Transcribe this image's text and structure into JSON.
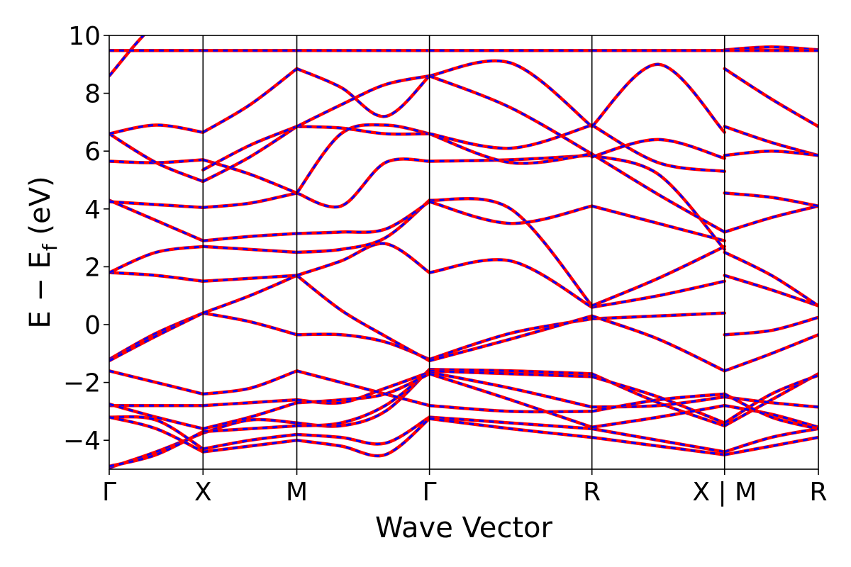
{
  "chart_data": {
    "type": "line",
    "title": "",
    "xlabel": "Wave Vector",
    "ylabel_main": "E − E",
    "ylabel_sub": "f",
    "ylabel_unit": " (eV)",
    "ylim": [
      -5,
      10
    ],
    "yticks": [
      {
        "v": -4,
        "label": "−4"
      },
      {
        "v": -2,
        "label": "−2"
      },
      {
        "v": 0,
        "label": "0"
      },
      {
        "v": 2,
        "label": "2"
      },
      {
        "v": 4,
        "label": "4"
      },
      {
        "v": 6,
        "label": "6"
      },
      {
        "v": 8,
        "label": "8"
      },
      {
        "v": 10,
        "label": "10"
      }
    ],
    "kpath_segments": [
      {
        "from": "Γ",
        "to": "X",
        "length": 0.5
      },
      {
        "from": "X",
        "to": "M",
        "length": 0.5
      },
      {
        "from": "M",
        "to": "Γ",
        "length": 0.707
      },
      {
        "from": "Γ",
        "to": "R",
        "length": 0.866
      },
      {
        "from": "R",
        "to": "X",
        "length": 0.707
      },
      {
        "from": "M",
        "to": "R",
        "length": 0.5
      }
    ],
    "kticks": [
      {
        "x": 0.0,
        "label": "Γ"
      },
      {
        "x": 0.5,
        "label": "X"
      },
      {
        "x": 1.0,
        "label": "M"
      },
      {
        "x": 1.707,
        "label": "Γ"
      },
      {
        "x": 2.573,
        "label": "R"
      },
      {
        "x": 3.28,
        "label": "X | M"
      },
      {
        "x": 3.78,
        "label": "R"
      }
    ],
    "series_colors": {
      "a": "#ff0000",
      "b": "#0000ff"
    },
    "bands": [
      {
        "segments": [
          [
            -4.95,
            -4.4,
            -3.75
          ],
          [
            -3.75,
            -3.3,
            -3.4
          ],
          [
            -3.4,
            -3.5,
            -3.0,
            -1.55
          ],
          [
            -1.55,
            -1.6,
            -1.7
          ],
          [
            -1.7,
            -2.7,
            -3.5
          ],
          [
            -3.5,
            -2.6,
            -1.7
          ]
        ]
      },
      {
        "segments": [
          [
            -4.9,
            -4.5,
            -3.7
          ],
          [
            -3.7,
            -3.6,
            -3.5
          ],
          [
            -3.5,
            -3.4,
            -2.8,
            -1.6
          ],
          [
            -1.6,
            -1.7,
            -1.8
          ],
          [
            -1.8,
            -2.5,
            -3.4
          ],
          [
            -3.4,
            -2.4,
            -1.75
          ]
        ]
      },
      {
        "segments": [
          [
            -3.2,
            -3.3,
            -4.3
          ],
          [
            -4.3,
            -4.0,
            -3.8
          ],
          [
            -3.8,
            -3.9,
            -4.1,
            -3.2
          ],
          [
            -3.2,
            -3.4,
            -3.6
          ],
          [
            -3.6,
            -4.0,
            -4.4
          ],
          [
            -4.4,
            -3.9,
            -3.6
          ]
        ]
      },
      {
        "segments": [
          [
            -3.2,
            -3.6,
            -4.4
          ],
          [
            -4.4,
            -4.2,
            -4.0
          ],
          [
            -4.0,
            -4.2,
            -4.5,
            -3.25
          ],
          [
            -3.25,
            -3.6,
            -3.9
          ],
          [
            -3.9,
            -4.2,
            -4.5
          ],
          [
            -4.5,
            -4.2,
            -3.9
          ]
        ]
      },
      {
        "segments": [
          [
            -2.8,
            -2.8,
            -2.8
          ],
          [
            -2.8,
            -2.7,
            -2.6
          ],
          [
            -2.6,
            -2.7,
            -2.2,
            -1.65
          ],
          [
            -1.65,
            -2.2,
            -2.85
          ],
          [
            -2.85,
            -2.8,
            -2.5
          ],
          [
            -2.5,
            -2.7,
            -2.85
          ]
        ]
      },
      {
        "segments": [
          [
            -2.75,
            -3.2,
            -3.6
          ],
          [
            -3.6,
            -3.2,
            -2.7
          ],
          [
            -2.7,
            -2.6,
            -2.4,
            -1.7
          ],
          [
            -1.7,
            -2.6,
            -3.55
          ],
          [
            -3.55,
            -3.2,
            -2.8
          ],
          [
            -2.8,
            -3.1,
            -3.55
          ]
        ]
      },
      {
        "segments": [
          [
            -1.6,
            -2.0,
            -2.4
          ],
          [
            -2.4,
            -2.2,
            -1.6
          ],
          [
            -1.6,
            -2.0,
            -2.4,
            -2.8
          ],
          [
            -2.8,
            -3.0,
            -3.0
          ],
          [
            -3.0,
            -2.6,
            -2.4
          ],
          [
            -2.4,
            -3.2,
            -3.6
          ]
        ]
      },
      {
        "segments": [
          [
            -1.2,
            -0.3,
            0.4
          ],
          [
            0.4,
            0.1,
            -0.35
          ],
          [
            -0.35,
            -0.35,
            -0.6,
            -1.2
          ],
          [
            -1.2,
            -0.3,
            0.2
          ],
          [
            0.2,
            0.3,
            0.4
          ],
          [
            -0.35,
            -0.2,
            0.25
          ]
        ]
      },
      {
        "segments": [
          [
            -1.25,
            -0.4,
            0.4
          ],
          [
            0.4,
            1.0,
            1.7
          ],
          [
            1.7,
            0.5,
            -0.4,
            -1.25
          ],
          [
            -1.25,
            -0.5,
            0.3
          ],
          [
            0.3,
            -0.5,
            -1.6
          ],
          [
            -1.6,
            -1.0,
            -0.35
          ]
        ]
      },
      {
        "segments": [
          [
            1.8,
            1.7,
            1.5
          ],
          [
            1.5,
            1.6,
            1.7
          ],
          [
            1.7,
            2.2,
            2.8,
            1.8
          ],
          [
            1.8,
            2.2,
            0.6
          ],
          [
            0.6,
            1.0,
            1.5
          ],
          [
            1.7,
            1.2,
            0.65
          ]
        ]
      },
      {
        "segments": [
          [
            1.8,
            2.5,
            2.7
          ],
          [
            2.7,
            2.6,
            2.5
          ],
          [
            2.5,
            2.6,
            3.0,
            4.3
          ],
          [
            4.3,
            4.0,
            0.65
          ],
          [
            0.65,
            1.6,
            2.7
          ],
          [
            2.5,
            1.7,
            0.65
          ]
        ]
      },
      {
        "segments": [
          [
            4.3,
            3.6,
            2.9
          ],
          [
            2.9,
            3.05,
            3.15
          ],
          [
            3.15,
            3.2,
            3.3,
            4.25
          ],
          [
            4.25,
            3.5,
            4.1
          ],
          [
            4.1,
            3.5,
            2.9
          ],
          [
            3.2,
            3.7,
            4.1
          ]
        ]
      },
      {
        "segments": [
          [
            4.25,
            4.15,
            4.05
          ],
          [
            4.05,
            4.2,
            4.55
          ],
          [
            4.55,
            4.1,
            5.6,
            5.65
          ],
          [
            5.65,
            5.7,
            5.85
          ],
          [
            5.85,
            5.2,
            2.6
          ],
          [
            4.55,
            4.4,
            4.1
          ]
        ]
      },
      {
        "segments": [
          [
            5.65,
            5.6,
            5.7
          ],
          [
            5.7,
            5.2,
            4.55
          ],
          [
            4.55,
            6.6,
            6.9,
            6.6
          ],
          [
            6.6,
            5.6,
            5.9
          ],
          [
            5.9,
            4.5,
            3.2
          ],
          [
            6.85,
            6.3,
            5.85
          ]
        ]
      },
      {
        "segments": [
          [
            6.6,
            5.6,
            4.95
          ],
          [
            4.95,
            5.8,
            6.85
          ],
          [
            6.85,
            6.8,
            6.6,
            6.6
          ],
          [
            6.6,
            6.1,
            6.9
          ],
          [
            6.9,
            5.6,
            5.3
          ],
          [
            8.85,
            7.8,
            6.85
          ]
        ]
      },
      {
        "segments": [
          [
            6.6,
            6.9,
            6.65
          ],
          [
            6.65,
            7.6,
            8.85
          ],
          [
            8.85,
            8.2,
            7.2,
            8.6
          ],
          [
            8.6,
            9.05,
            6.85
          ],
          [
            6.85,
            9.0,
            6.65
          ],
          [
            9.5,
            9.6,
            9.5
          ]
        ]
      },
      {
        "segments": [
          [
            8.6,
            10.4,
            11.0
          ],
          [
            5.35,
            6.2,
            6.85
          ],
          [
            6.85,
            7.6,
            8.3,
            8.6
          ],
          [
            8.6,
            7.5,
            5.9
          ],
          [
            5.8,
            6.4,
            5.75
          ],
          [
            5.85,
            6.0,
            5.85
          ]
        ]
      },
      {
        "segments": [
          [
            9.48,
            9.48,
            9.48
          ],
          [
            9.48,
            9.48,
            9.48
          ],
          [
            9.48,
            9.48,
            9.48,
            9.48
          ],
          [
            9.48,
            9.48,
            9.48
          ],
          [
            9.48,
            9.48,
            9.48
          ],
          [
            9.48,
            9.48,
            9.48
          ]
        ]
      }
    ]
  }
}
